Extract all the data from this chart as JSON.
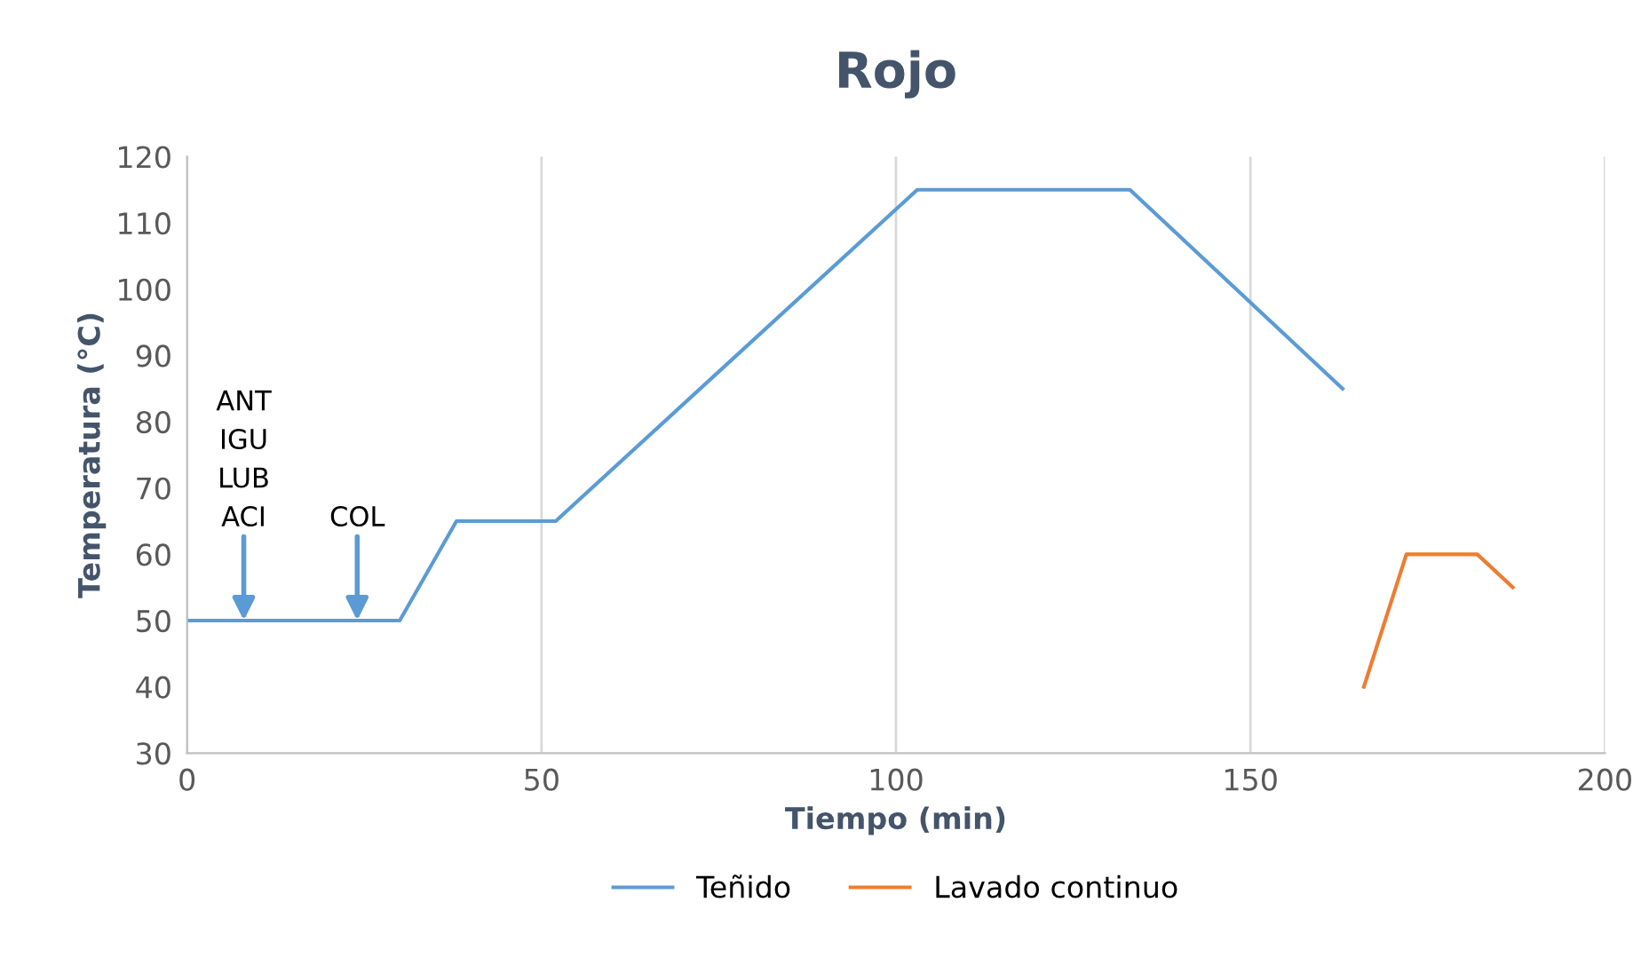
{
  "chart_data": {
    "type": "line",
    "title": "Rojo",
    "xlabel": "Tiempo (min)",
    "ylabel": "Temperatura (°C)",
    "series": [
      {
        "name": "Teñido",
        "color": "#5b9bd5",
        "x": [
          0,
          30,
          38,
          52,
          103,
          133,
          163
        ],
        "values": [
          50,
          50,
          65,
          65,
          115,
          115,
          85
        ]
      },
      {
        "name": "Lavado continuo",
        "color": "#ed7d31",
        "x": [
          166,
          172,
          182,
          187
        ],
        "values": [
          40,
          60,
          60,
          55
        ]
      }
    ],
    "xlim": [
      0,
      200
    ],
    "xticks": [
      0,
      50,
      100,
      150,
      200
    ],
    "ylim": [
      30,
      120
    ],
    "yticks": [
      30,
      40,
      50,
      60,
      70,
      80,
      90,
      100,
      110,
      120
    ],
    "grid": "x",
    "legend": "bottom",
    "marker": "none",
    "line_style": "solid",
    "annotations": [
      {
        "text": "ANT\nIGU\nLUB\nACI",
        "x": 8,
        "y": 50
      },
      {
        "text": "COL",
        "x": 24,
        "y": 50
      }
    ]
  }
}
